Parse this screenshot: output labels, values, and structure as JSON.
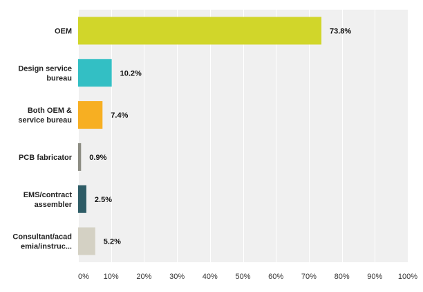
{
  "chart_data": {
    "type": "bar",
    "orientation": "horizontal",
    "title": "",
    "xlabel": "",
    "ylabel": "",
    "xlim": [
      0,
      100
    ],
    "grid": true,
    "categories": [
      [
        "OEM"
      ],
      [
        "Design service",
        "bureau"
      ],
      [
        "Both OEM &",
        "service bureau"
      ],
      [
        "PCB fabricator"
      ],
      [
        "EMS/contract",
        "assembler"
      ],
      [
        "Consultant/acad",
        "emia/instruc..."
      ]
    ],
    "values": [
      73.8,
      10.2,
      7.4,
      0.9,
      2.5,
      5.2
    ],
    "value_labels": [
      "73.8%",
      "10.2%",
      "7.4%",
      "0.9%",
      "2.5%",
      "5.2%"
    ],
    "colors": [
      "#d1d62a",
      "#33bfc4",
      "#f7af22",
      "#8c8c82",
      "#2e5c66",
      "#d4d1c4"
    ],
    "ticks": [
      0,
      10,
      20,
      30,
      40,
      50,
      60,
      70,
      80,
      90,
      100
    ],
    "tick_labels": [
      "0%",
      "10%",
      "20%",
      "30%",
      "40%",
      "50%",
      "60%",
      "70%",
      "80%",
      "90%",
      "100%"
    ]
  }
}
